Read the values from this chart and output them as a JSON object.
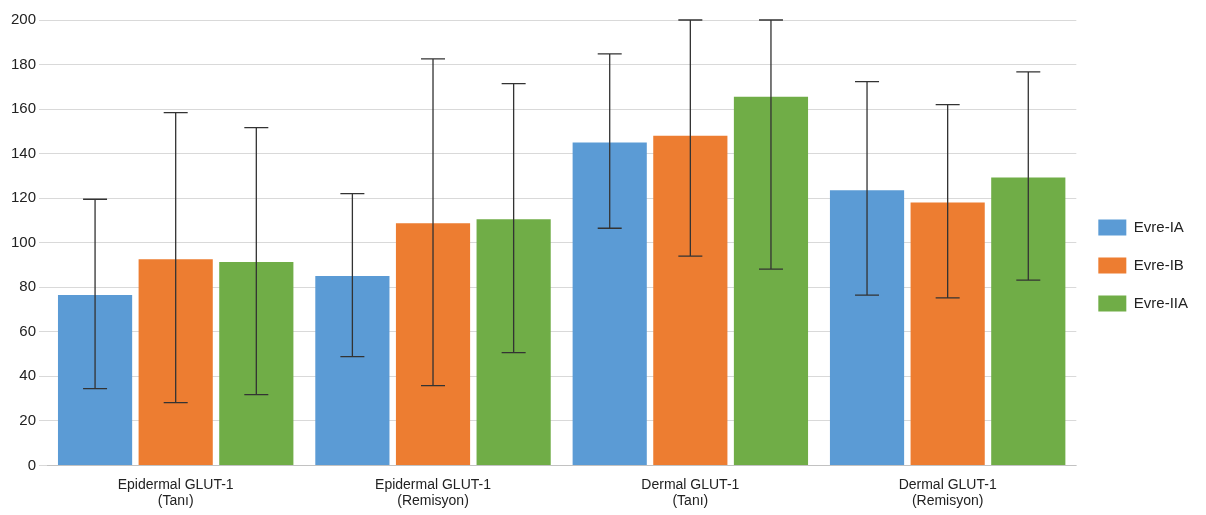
{
  "chart_data": {
    "type": "bar",
    "categories": [
      "Epidermal GLUT-1 (Tanı)",
      "Epidermal GLUT-1 (Remisyon)",
      "Dermal GLUT-1 (Tanı)",
      "Dermal GLUT-1 (Remisyon)"
    ],
    "series": [
      {
        "name": "Evre-IA",
        "color": "#5b9bd5",
        "values": [
          76.5,
          85,
          145,
          123.5
        ],
        "errors": [
          [
            34.5,
            119.5
          ],
          [
            48.8,
            122
          ],
          [
            106.5,
            184.8
          ],
          [
            76.5,
            172.3
          ]
        ]
      },
      {
        "name": "Evre-IB",
        "color": "#ed7d31",
        "values": [
          92.6,
          108.7,
          148,
          118.1
        ],
        "errors": [
          [
            28.2,
            158.4
          ],
          [
            35.8,
            182.5
          ],
          [
            94,
            200
          ],
          [
            75.2,
            162
          ]
        ]
      },
      {
        "name": "Evre-IIA",
        "color": "#70ad47",
        "values": [
          91.3,
          110.5,
          165.5,
          129.3
        ],
        "errors": [
          [
            31.8,
            151.7
          ],
          [
            50.6,
            171.4
          ],
          [
            88.1,
            200
          ],
          [
            83.2,
            176.7
          ]
        ]
      }
    ],
    "ylim": [
      0,
      200
    ],
    "yticks": [
      0,
      20,
      40,
      60,
      80,
      100,
      120,
      140,
      160,
      180,
      200
    ],
    "grid": "y",
    "legend": "right"
  }
}
